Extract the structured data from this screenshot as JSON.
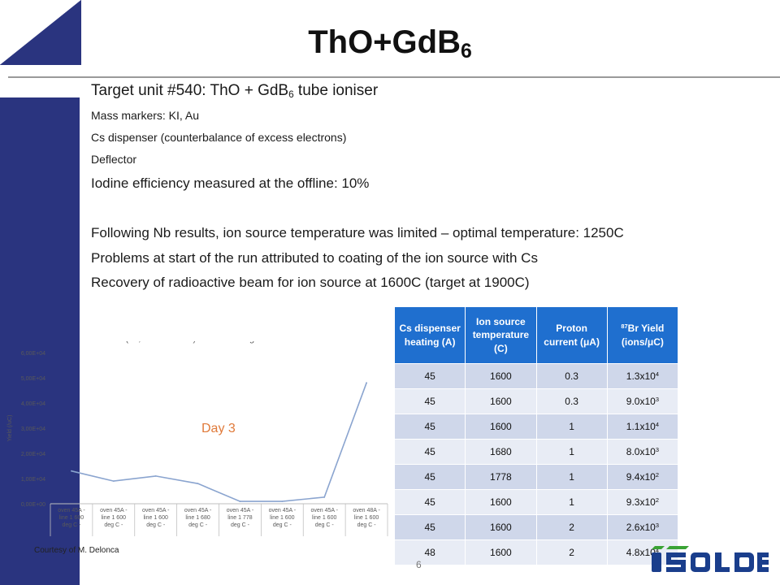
{
  "slide": {
    "title_main": "ThO+GdB",
    "title_sub": "6",
    "page_number": "6",
    "credit": "Courtesy of M. Delonca"
  },
  "bullets": {
    "heading_a": "Target unit #540: ThO + GdB",
    "heading_sub": "6",
    "heading_b": " tube ioniser",
    "b1": "Mass markers: KI, Au",
    "b2": "Cs dispenser (counterbalance of excess electrons)",
    "b3": "Deflector",
    "b4": "Iodine efficiency measured at the offline: 10%",
    "b5": "Following Nb results, ion source temperature was limited – optimal temperature: 1250C",
    "b6": "Problems at start of the run attributed to coating of the ion source with Cs",
    "b7": "Recovery of radioactive beam for ion source at 1600C (target at 1900C)"
  },
  "table": {
    "headers": [
      {
        "text": "Cs dispenser heating (A)"
      },
      {
        "text": "Ion source temperature (C)"
      },
      {
        "text": "Proton current (μA)"
      },
      {
        "sup": "87",
        "text": "Br Yield (ions/μC)"
      }
    ],
    "rows": [
      {
        "cs": "45",
        "temp": "1600",
        "current": "0.3",
        "mant": "1.3x10",
        "exp": "4"
      },
      {
        "cs": "45",
        "temp": "1600",
        "current": "0.3",
        "mant": "9.0x10",
        "exp": "3"
      },
      {
        "cs": "45",
        "temp": "1600",
        "current": "1",
        "mant": "1.1x10",
        "exp": "4"
      },
      {
        "cs": "45",
        "temp": "1680",
        "current": "1",
        "mant": "8.0x10",
        "exp": "3"
      },
      {
        "cs": "45",
        "temp": "1778",
        "current": "1",
        "mant": "9.4x10",
        "exp": "2"
      },
      {
        "cs": "45",
        "temp": "1600",
        "current": "1",
        "mant": "9.3x10",
        "exp": "2"
      },
      {
        "cs": "45",
        "temp": "1600",
        "current": "2",
        "mant": "2.6x10",
        "exp": "3"
      },
      {
        "cs": "48",
        "temp": "1600",
        "current": "2",
        "mant": "4.8x10",
        "exp": "4"
      }
    ]
  },
  "chart_data": {
    "type": "line",
    "title": "87 Br (55,7 sec half life) - Thorium target",
    "xlabel": "",
    "ylabel": "Yield (/uC)",
    "annotation": "Day 3",
    "ylim": [
      0,
      60000
    ],
    "y_ticks": [
      "0,00E+00",
      "1,00E+04",
      "2,00E+04",
      "3,00E+04",
      "4,00E+04",
      "5,00E+04",
      "6,00E+04"
    ],
    "categories": [
      [
        "oven 45A -",
        "line 1 600",
        "deg C -"
      ],
      [
        "oven 45A -",
        "line 1 600",
        "deg C -"
      ],
      [
        "oven 45A -",
        "line 1 600",
        "deg C -"
      ],
      [
        "oven 45A -",
        "line 1 680",
        "deg C -"
      ],
      [
        "oven 45A -",
        "line 1 778",
        "deg C -"
      ],
      [
        "oven 45A -",
        "line 1 600",
        "deg C -"
      ],
      [
        "oven 45A -",
        "line 1 600",
        "deg C -"
      ],
      [
        "oven 48A -",
        "line 1 600",
        "deg C -"
      ]
    ],
    "series": [
      {
        "values": [
          13000,
          9000,
          11000,
          8000,
          940,
          930,
          2600,
          48000
        ]
      }
    ],
    "grid": false,
    "colors": {
      "line": "#8aa4cf",
      "annotation": "#e07a3a",
      "axis": "#bfbfbf",
      "text": "#595959"
    }
  },
  "colors": {
    "accent_navy": "#2a347f",
    "table_header": "#1f6fcf",
    "logo_blue": "#1a3e8c",
    "logo_green": "#3aa335"
  },
  "logo": {
    "alt": "ISOLDE"
  }
}
